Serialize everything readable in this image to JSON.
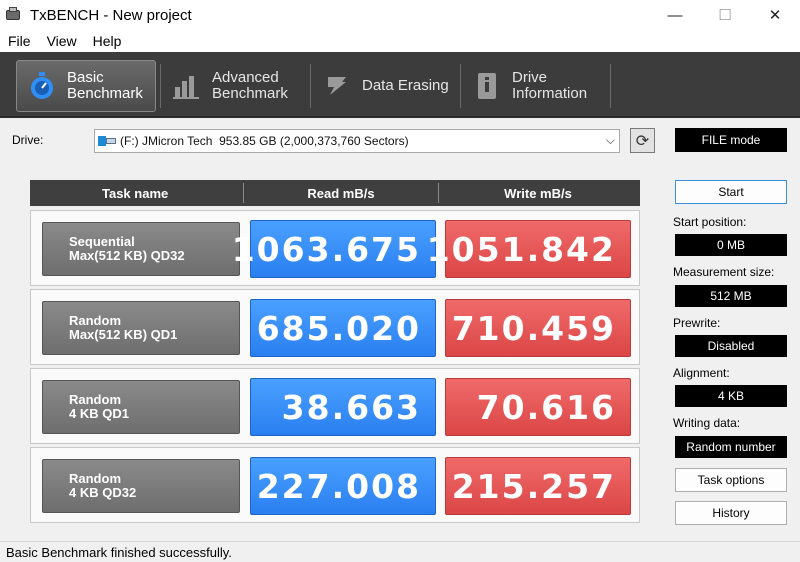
{
  "window": {
    "title": "TxBENCH - New project",
    "minimize": "—",
    "maximize": "☐",
    "close": "✕"
  },
  "menu": [
    "File",
    "View",
    "Help"
  ],
  "tabs": [
    {
      "label": "Basic\nBenchmark",
      "icon": "stopwatch-icon",
      "active": true
    },
    {
      "label": "Advanced\nBenchmark",
      "icon": "bar-chart-icon",
      "active": false
    },
    {
      "label": "Data Erasing",
      "icon": "eraser-icon",
      "active": false
    },
    {
      "label": "Drive\nInformation",
      "icon": "drive-info-icon",
      "active": false
    }
  ],
  "drive": {
    "label": "Drive:",
    "selected": "(F:) JMicron Tech  953.85 GB (2,000,373,760 Sectors)",
    "refresh_icon": "refresh-icon",
    "mode": "FILE mode"
  },
  "table": {
    "headers": [
      "Task name",
      "Read mB/s",
      "Write mB/s"
    ],
    "rows": [
      {
        "task": "Sequential\nMax(512 KB) QD32",
        "read": "1063.675",
        "write": "1051.842"
      },
      {
        "task": "Random\nMax(512 KB) QD1",
        "read": "685.020",
        "write": "710.459"
      },
      {
        "task": "Random\n4 KB QD1",
        "read": "38.663",
        "write": "70.616"
      },
      {
        "task": "Random\n4 KB QD32",
        "read": "227.008",
        "write": "215.257"
      }
    ]
  },
  "side": {
    "start": "Start",
    "start_position_label": "Start position:",
    "start_position": "0 MB",
    "measurement_size_label": "Measurement size:",
    "measurement_size": "512 MB",
    "prewrite_label": "Prewrite:",
    "prewrite": "Disabled",
    "alignment_label": "Alignment:",
    "alignment": "4 KB",
    "writing_data_label": "Writing data:",
    "writing_data": "Random number",
    "task_options": "Task options",
    "history": "History"
  },
  "status": "Basic Benchmark finished successfully.",
  "colors": {
    "read": "#2a7ff0",
    "write": "#db4646",
    "tabbar": "#3c3c3c"
  }
}
